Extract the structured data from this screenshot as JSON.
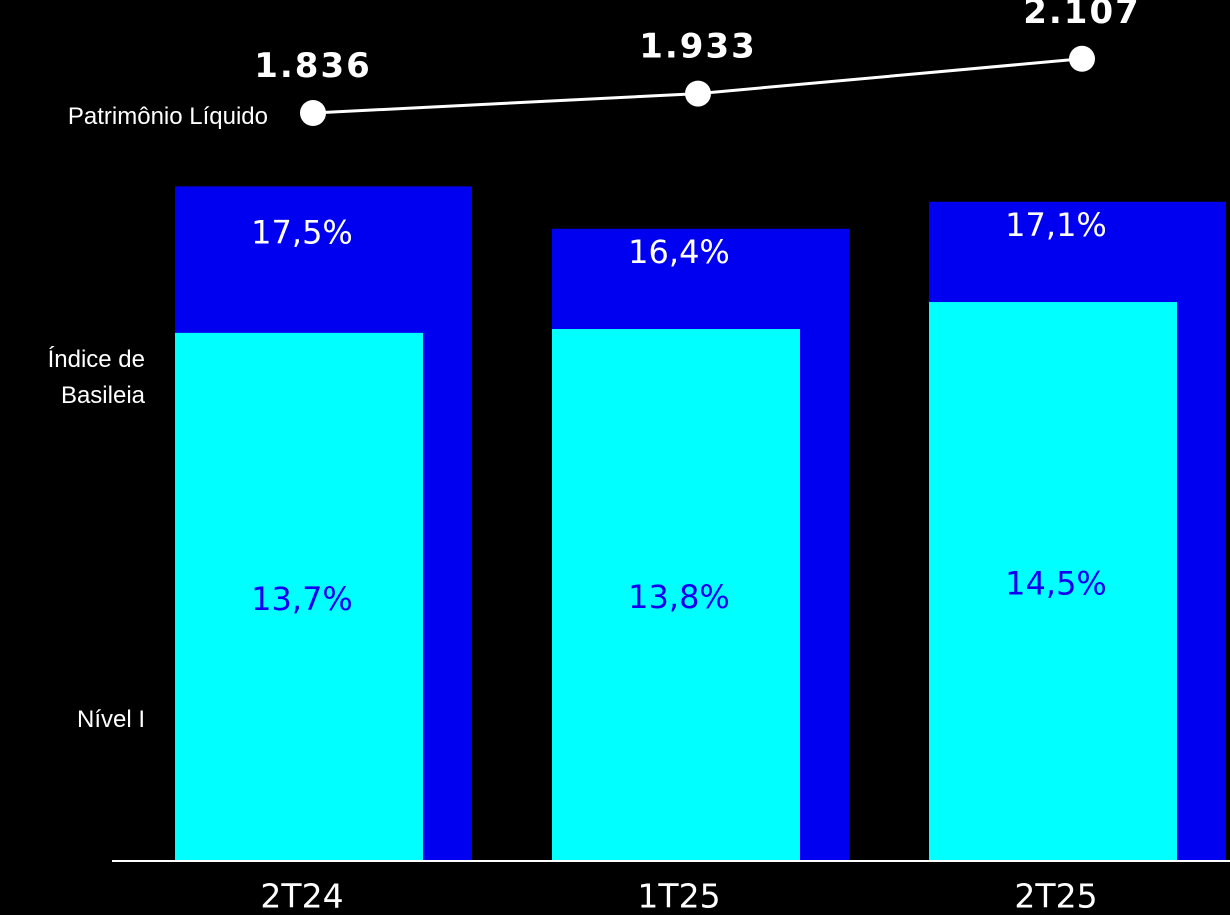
{
  "colors": {
    "background": "#000000",
    "basel_bar": "#0000F0",
    "tier1_bar": "#00FFFF",
    "basel_label": "#FFFFFF",
    "tier1_label": "#1400F0",
    "line": "#FFFFFF",
    "axis": "#FFFFFF"
  },
  "chart_data": {
    "type": "bar",
    "categories": [
      "2T24",
      "1T25",
      "2T25"
    ],
    "series": [
      {
        "name": "Índice de Basileia",
        "values": [
          17.5,
          16.4,
          17.1
        ],
        "labels": [
          "17,5%",
          "16,4%",
          "17,1%"
        ]
      },
      {
        "name": "Nível I",
        "values": [
          13.7,
          13.8,
          14.5
        ],
        "labels": [
          "13,7%",
          "13,8%",
          "14,5%"
        ]
      },
      {
        "name": "Patrimônio Líquido",
        "type": "line",
        "values": [
          1836,
          1933,
          2107
        ],
        "labels": [
          "1.836",
          "1.933",
          "2.107"
        ]
      }
    ],
    "row_labels": {
      "line": "Patrimônio Líquido",
      "basel_line1": "Índice de",
      "basel_line2": "Basileia",
      "tier1": "Nível I"
    },
    "grid": false,
    "legend": "left"
  }
}
